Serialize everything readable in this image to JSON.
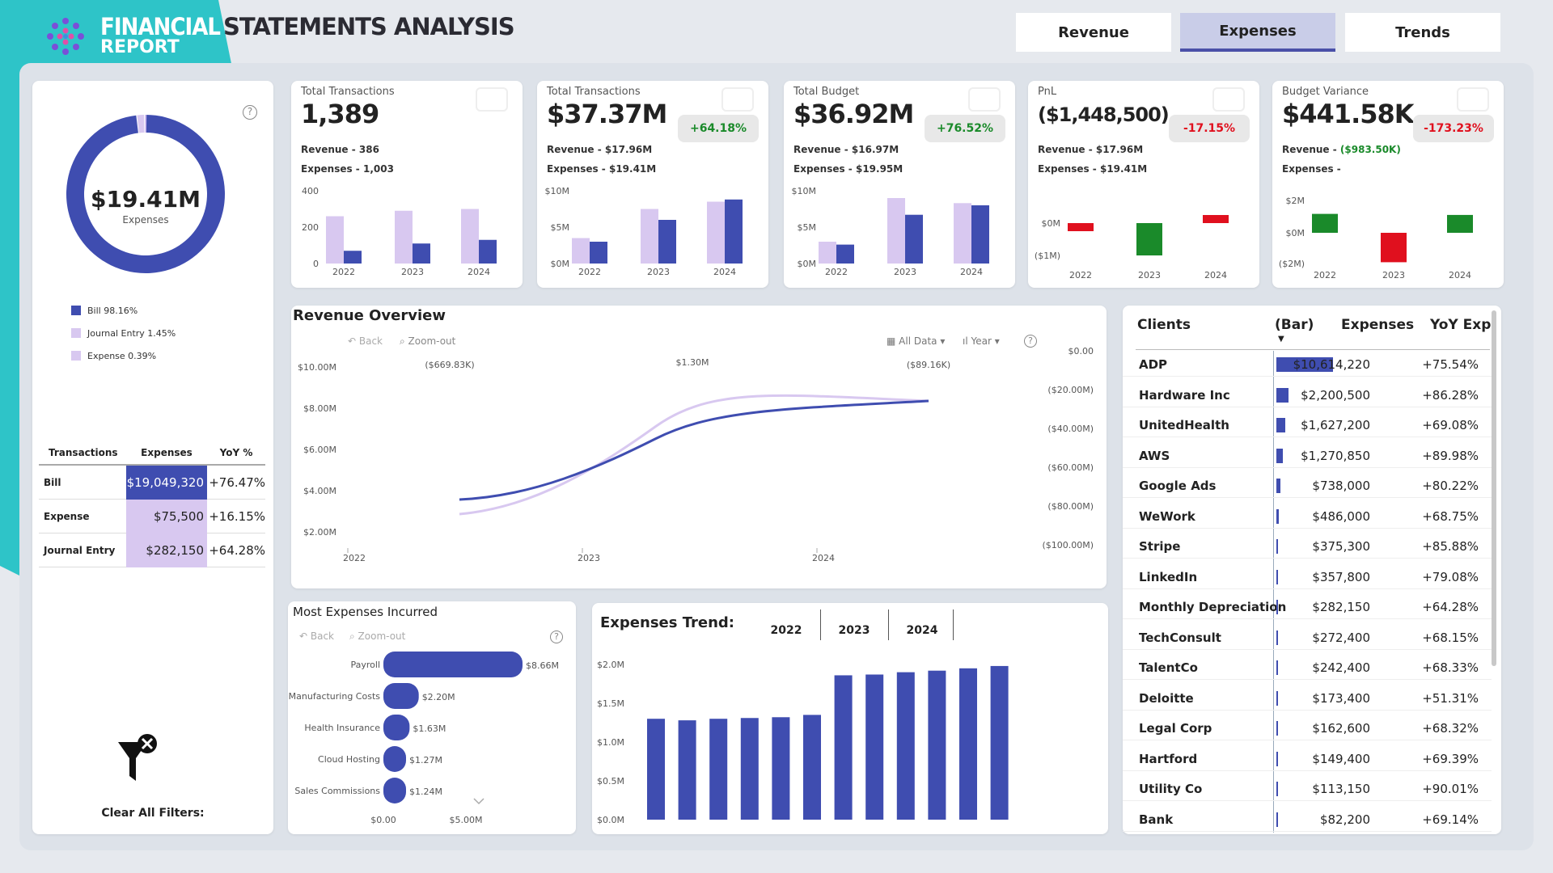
{
  "header": {
    "title_a": "FINANCIAL",
    "title_b": "STATEMENTS ANALYSIS",
    "title_c": "REPORT",
    "tabs": [
      "Revenue",
      "Expenses",
      "Trends"
    ]
  },
  "donut": {
    "value": "$19.41M",
    "label": "Expenses",
    "legend": [
      {
        "label": "Bill 98.16%",
        "color": "#3f4db0"
      },
      {
        "label": "Journal Entry 1.45%",
        "color": "#d8c8f0"
      },
      {
        "label": "Expense 0.39%",
        "color": "#d8c8f0"
      }
    ],
    "fractions": [
      0.9816,
      0.0145,
      0.0039
    ]
  },
  "type_table": {
    "headers": [
      "Transactions",
      "Expenses",
      "YoY %"
    ],
    "rows": [
      {
        "name": "Bill",
        "exp": "$19,049,320",
        "yoy": "+76.47%"
      },
      {
        "name": "Expense",
        "exp": "$75,500",
        "yoy": "+16.15%"
      },
      {
        "name": "Journal Entry",
        "exp": "$282,150",
        "yoy": "+64.28%"
      }
    ]
  },
  "clear_filters": "Clear All Filters:",
  "kpis": [
    {
      "label": "Total Transactions",
      "value": "1,389",
      "badge": "",
      "l1": "Revenue - 386",
      "l2": "Expenses - 1,003",
      "yticks": [
        "400",
        "200",
        "0"
      ]
    },
    {
      "label": "Total Transactions",
      "value": "$37.37M",
      "badge": "+64.18%",
      "l1": "Revenue - $17.96M",
      "l2": "Expenses - $19.41M",
      "yticks": [
        "$10M",
        "$5M",
        "$0M"
      ]
    },
    {
      "label": "Total Budget",
      "value": "$36.92M",
      "badge": "+76.52%",
      "l1": "Revenue - $16.97M",
      "l2": "Expenses - $19.95M",
      "yticks": [
        "$10M",
        "$5M",
        "$0M"
      ]
    },
    {
      "label": "PnL",
      "value": "($1,448,500)",
      "badge": "-17.15%",
      "l1": "Revenue - $17.96M",
      "l2": "Expenses - $19.41M",
      "yticks": [
        "$0M",
        "($1M)"
      ]
    },
    {
      "label": "Budget Variance",
      "value": "$441.58K",
      "badge": "-173.23%",
      "l1": "Revenue - ",
      "l1b": "($983.50K)",
      "l2": "Expenses - ",
      "yticks": [
        "$2M",
        "$0M",
        "($2M)"
      ]
    }
  ],
  "years": [
    "2022",
    "2023",
    "2024"
  ],
  "revenue_overview": {
    "title": "Revenue Overview",
    "back": "Back",
    "zoom": "Zoom-out",
    "all_data": "All Data",
    "year": "Year",
    "left_ticks": [
      "$10.00M",
      "$8.00M",
      "$6.00M",
      "$4.00M",
      "$2.00M"
    ],
    "right_ticks": [
      "$0.00",
      "($20.00M)",
      "($40.00M)",
      "($60.00M)",
      "($80.00M)",
      "($100.00M)"
    ],
    "labels": [
      "($669.83K)",
      "$1.30M",
      "($89.16K)"
    ]
  },
  "most_expenses": {
    "title": "Most Expenses Incurred",
    "back": "Back",
    "zoom": "Zoom-out",
    "items": [
      {
        "name": "Payroll",
        "val": "$8.66M",
        "v": 8.66
      },
      {
        "name": "Product Manufacturing Costs",
        "val": "$2.20M",
        "v": 2.2
      },
      {
        "name": "Health Insurance",
        "val": "$1.63M",
        "v": 1.63
      },
      {
        "name": "Cloud Hosting",
        "val": "$1.27M",
        "v": 1.27
      },
      {
        "name": "Sales Commissions",
        "val": "$1.24M",
        "v": 1.24
      }
    ],
    "xticks": [
      "$0.00",
      "$5.00M"
    ]
  },
  "trend": {
    "title": "Expenses Trend:",
    "years": [
      "2022",
      "2023",
      "2024"
    ],
    "yticks": [
      "$2.0M",
      "$1.5M",
      "$1.0M",
      "$0.5M",
      "$0.0M"
    ]
  },
  "chart_data": [
    {
      "type": "bar",
      "title": "Expenses Trend:",
      "ylim": [
        0,
        2.0
      ],
      "yunit": "$M",
      "values": [
        1.3,
        1.28,
        1.3,
        1.31,
        1.32,
        1.35,
        1.86,
        1.87,
        1.9,
        1.92,
        1.95,
        1.98
      ]
    }
  ],
  "clients": {
    "headers": [
      "Clients",
      "(Bar)",
      "Expenses",
      "YoY Exp"
    ],
    "rows": [
      {
        "name": "ADP",
        "val": "$10,614,220",
        "yoy": "+75.54%",
        "v": 10614220
      },
      {
        "name": "Hardware Inc",
        "val": "$2,200,500",
        "yoy": "+86.28%",
        "v": 2200500
      },
      {
        "name": "UnitedHealth",
        "val": "$1,627,200",
        "yoy": "+69.08%",
        "v": 1627200
      },
      {
        "name": "AWS",
        "val": "$1,270,850",
        "yoy": "+89.98%",
        "v": 1270850
      },
      {
        "name": "Google Ads",
        "val": "$738,000",
        "yoy": "+80.22%",
        "v": 738000
      },
      {
        "name": "WeWork",
        "val": "$486,000",
        "yoy": "+68.75%",
        "v": 486000
      },
      {
        "name": "Stripe",
        "val": "$375,300",
        "yoy": "+85.88%",
        "v": 375300
      },
      {
        "name": "LinkedIn",
        "val": "$357,800",
        "yoy": "+79.08%",
        "v": 357800
      },
      {
        "name": "Monthly Depreciation",
        "val": "$282,150",
        "yoy": "+64.28%",
        "v": 282150
      },
      {
        "name": "TechConsult",
        "val": "$272,400",
        "yoy": "+68.15%",
        "v": 272400
      },
      {
        "name": "TalentCo",
        "val": "$242,400",
        "yoy": "+68.33%",
        "v": 242400
      },
      {
        "name": "Deloitte",
        "val": "$173,400",
        "yoy": "+51.31%",
        "v": 173400
      },
      {
        "name": "Legal Corp",
        "val": "$162,600",
        "yoy": "+68.32%",
        "v": 162600
      },
      {
        "name": "Hartford",
        "val": "$149,400",
        "yoy": "+69.39%",
        "v": 149400
      },
      {
        "name": "Utility Co",
        "val": "$113,150",
        "yoy": "+90.01%",
        "v": 113150
      },
      {
        "name": "Bank",
        "val": "$82,200",
        "yoy": "+69.14%",
        "v": 82200
      }
    ]
  }
}
